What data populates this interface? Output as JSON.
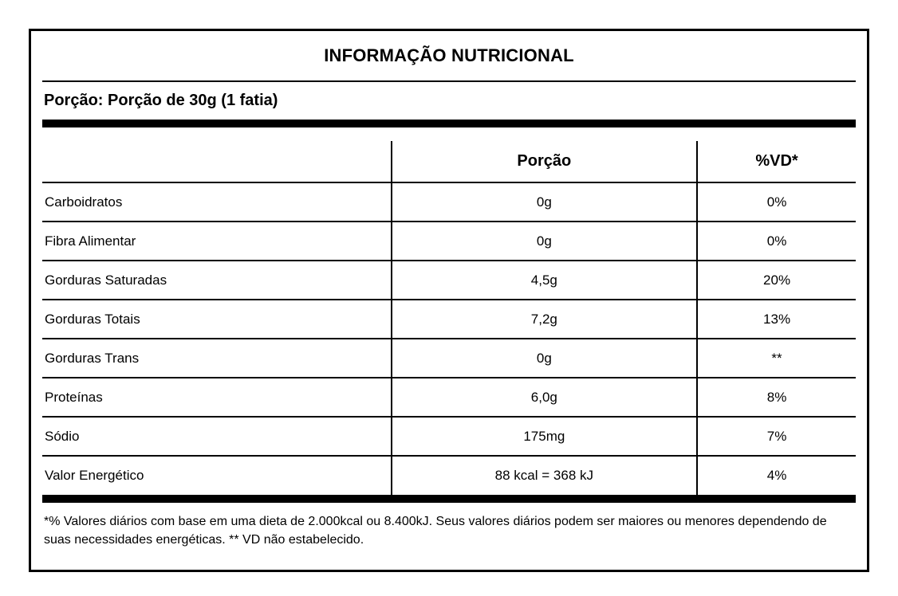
{
  "label": {
    "title": "INFORMAÇÃO NUTRICIONAL",
    "serving_line": "Porção: Porção de 30g (1 fatia)",
    "columns": {
      "portion": "Porção",
      "dv": "%VD*"
    },
    "rows": [
      {
        "name": "Carboidratos",
        "amount": "0g",
        "dv": "0%"
      },
      {
        "name": "Fibra Alimentar",
        "amount": "0g",
        "dv": "0%"
      },
      {
        "name": "Gorduras Saturadas",
        "amount": "4,5g",
        "dv": "20%"
      },
      {
        "name": "Gorduras Totais",
        "amount": "7,2g",
        "dv": "13%"
      },
      {
        "name": "Gorduras Trans",
        "amount": "0g",
        "dv": "**"
      },
      {
        "name": "Proteínas",
        "amount": "6,0g",
        "dv": "8%"
      },
      {
        "name": "Sódio",
        "amount": "175mg",
        "dv": "7%"
      },
      {
        "name": "Valor Energético",
        "amount": "88 kcal = 368 kJ",
        "dv": "4%"
      }
    ],
    "footnote": "*% Valores diários com base em uma dieta de 2.000kcal ou 8.400kJ. Seus valores diários podem ser maiores ou menores dependendo de suas necessidades energéticas. ** VD não estabelecido.",
    "colors": {
      "text": "#000000",
      "background": "#ffffff",
      "border": "#000000"
    }
  }
}
